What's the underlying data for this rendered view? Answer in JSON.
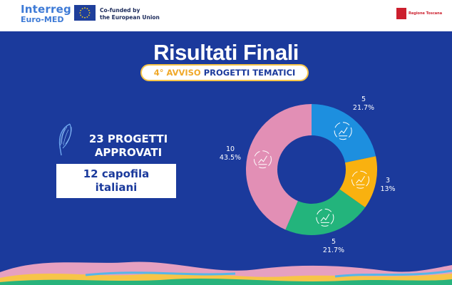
{
  "header": {
    "brand_line1": "Interreg",
    "brand_line2": "Euro-MED",
    "cofund_line1": "Co-funded by",
    "cofund_line2": "the European Union",
    "region_name": "Regione Toscana"
  },
  "title": "Risultati Finali",
  "subtitle_highlight": "4° AVVISO",
  "subtitle_rest": " PROGETTI TEMATICI",
  "summary": {
    "count_line1": "23 PROGETTI",
    "count_line2": "APPROVATI",
    "leaders_line1": "12 capofila",
    "leaders_line2": "italiani"
  },
  "colors": {
    "background": "#1b3a9c",
    "accent": "#f7c548"
  },
  "chart_data": {
    "type": "pie",
    "donut": true,
    "legend": "none",
    "slices": [
      {
        "value": 5,
        "percent": "21.7%",
        "color": "#1d8fdf",
        "icon": "growth-chart-icon"
      },
      {
        "value": 3,
        "percent": "13%",
        "color": "#f9b10f",
        "icon": "hand-leaf-icon"
      },
      {
        "value": 5,
        "percent": "21.7%",
        "color": "#23b47c",
        "icon": "city-icon"
      },
      {
        "value": 10,
        "percent": "43.5%",
        "color": "#e28fb5",
        "icon": "hands-globe-icon"
      }
    ]
  }
}
